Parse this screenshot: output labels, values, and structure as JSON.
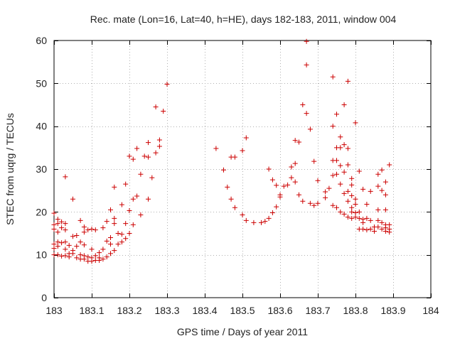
{
  "chart_data": {
    "type": "scatter",
    "title": "Rec. mate (Lon=16, Lat=40, h=HE), days 182-183, 2011, window 004",
    "xlabel": "GPS time / Days of year 2011",
    "ylabel": "STEC from uqrg / TECUs",
    "xlim": [
      183,
      184
    ],
    "ylim": [
      0,
      60
    ],
    "xticks": [
      183,
      183.1,
      183.2,
      183.3,
      183.4,
      183.5,
      183.6,
      183.7,
      183.8,
      183.9,
      184
    ],
    "xtick_labels": [
      "183",
      "183.1",
      "183.2",
      "183.3",
      "183.4",
      "183.5",
      "183.6",
      "183.7",
      "183.8",
      "183.9",
      "184"
    ],
    "yticks": [
      0,
      10,
      20,
      30,
      40,
      50,
      60
    ],
    "ytick_labels": [
      "0",
      "10",
      "20",
      "30",
      "40",
      "50",
      "60"
    ],
    "grid": true,
    "marker": "+",
    "color": "#cc0000",
    "series": [
      {
        "name": "STEC",
        "points": [
          [
            183.0,
            19.7
          ],
          [
            183.0,
            17.0
          ],
          [
            183.0,
            16.0
          ],
          [
            183.0,
            12.5
          ],
          [
            183.0,
            11.5
          ],
          [
            183.0,
            10.0
          ],
          [
            183.01,
            18.3
          ],
          [
            183.01,
            17.3
          ],
          [
            183.01,
            15.3
          ],
          [
            183.01,
            13.0
          ],
          [
            183.01,
            12.0
          ],
          [
            183.01,
            10.0
          ],
          [
            183.02,
            17.7
          ],
          [
            183.02,
            16.3
          ],
          [
            183.02,
            12.8
          ],
          [
            183.02,
            9.7
          ],
          [
            183.03,
            28.2
          ],
          [
            183.03,
            17.3
          ],
          [
            183.03,
            15.8
          ],
          [
            183.03,
            13.0
          ],
          [
            183.03,
            11.3
          ],
          [
            183.03,
            9.8
          ],
          [
            183.04,
            12.2
          ],
          [
            183.04,
            10.3
          ],
          [
            183.04,
            9.5
          ],
          [
            183.05,
            23.0
          ],
          [
            183.05,
            14.3
          ],
          [
            183.05,
            11.0
          ],
          [
            183.05,
            10.3
          ],
          [
            183.06,
            14.5
          ],
          [
            183.06,
            12.0
          ],
          [
            183.06,
            9.3
          ],
          [
            183.07,
            18.0
          ],
          [
            183.07,
            13.0
          ],
          [
            183.07,
            10.0
          ],
          [
            183.07,
            9.0
          ],
          [
            183.08,
            16.5
          ],
          [
            183.08,
            15.3
          ],
          [
            183.08,
            12.3
          ],
          [
            183.08,
            9.8
          ],
          [
            183.08,
            9.0
          ],
          [
            183.09,
            15.8
          ],
          [
            183.09,
            9.5
          ],
          [
            183.09,
            8.5
          ],
          [
            183.1,
            16.0
          ],
          [
            183.1,
            11.3
          ],
          [
            183.1,
            9.3
          ],
          [
            183.1,
            8.5
          ],
          [
            183.11,
            15.8
          ],
          [
            183.11,
            9.8
          ],
          [
            183.11,
            8.7
          ],
          [
            183.12,
            10.5
          ],
          [
            183.12,
            9.3
          ],
          [
            183.12,
            8.7
          ],
          [
            183.13,
            16.3
          ],
          [
            183.13,
            11.3
          ],
          [
            183.13,
            9.0
          ],
          [
            183.14,
            17.8
          ],
          [
            183.14,
            13.2
          ],
          [
            183.14,
            9.5
          ],
          [
            183.15,
            20.5
          ],
          [
            183.15,
            14.0
          ],
          [
            183.15,
            12.5
          ],
          [
            183.15,
            10.3
          ],
          [
            183.16,
            25.8
          ],
          [
            183.16,
            18.5
          ],
          [
            183.16,
            17.3
          ],
          [
            183.16,
            11.0
          ],
          [
            183.17,
            15.0
          ],
          [
            183.17,
            12.5
          ],
          [
            183.18,
            21.7
          ],
          [
            183.18,
            14.8
          ],
          [
            183.18,
            13.0
          ],
          [
            183.19,
            26.5
          ],
          [
            183.19,
            17.3
          ],
          [
            183.19,
            13.8
          ],
          [
            183.2,
            33.0
          ],
          [
            183.2,
            20.3
          ],
          [
            183.2,
            15.0
          ],
          [
            183.21,
            32.3
          ],
          [
            183.21,
            23.0
          ],
          [
            183.21,
            17.0
          ],
          [
            183.22,
            34.8
          ],
          [
            183.22,
            23.7
          ],
          [
            183.23,
            28.8
          ],
          [
            183.23,
            19.3
          ],
          [
            183.24,
            33.0
          ],
          [
            183.25,
            36.2
          ],
          [
            183.25,
            32.8
          ],
          [
            183.25,
            23.0
          ],
          [
            183.26,
            28.0
          ],
          [
            183.27,
            44.5
          ],
          [
            183.27,
            33.8
          ],
          [
            183.28,
            36.8
          ],
          [
            183.28,
            35.3
          ],
          [
            183.29,
            43.5
          ],
          [
            183.3,
            49.8
          ],
          [
            183.43,
            34.8
          ],
          [
            183.45,
            29.8
          ],
          [
            183.46,
            25.8
          ],
          [
            183.47,
            32.8
          ],
          [
            183.47,
            23.0
          ],
          [
            183.48,
            32.8
          ],
          [
            183.48,
            21.0
          ],
          [
            183.5,
            34.3
          ],
          [
            183.5,
            19.3
          ],
          [
            183.51,
            37.3
          ],
          [
            183.51,
            18.0
          ],
          [
            183.53,
            17.5
          ],
          [
            183.55,
            17.5
          ],
          [
            183.56,
            17.8
          ],
          [
            183.57,
            30.0
          ],
          [
            183.57,
            18.5
          ],
          [
            183.58,
            27.5
          ],
          [
            183.58,
            19.8
          ],
          [
            183.59,
            26.2
          ],
          [
            183.59,
            21.2
          ],
          [
            183.6,
            24.0
          ],
          [
            183.6,
            23.5
          ],
          [
            183.61,
            26.0
          ],
          [
            183.62,
            26.3
          ],
          [
            183.63,
            30.5
          ],
          [
            183.63,
            28.0
          ],
          [
            183.64,
            36.7
          ],
          [
            183.64,
            31.3
          ],
          [
            183.64,
            27.0
          ],
          [
            183.65,
            36.3
          ],
          [
            183.65,
            24.0
          ],
          [
            183.66,
            45.0
          ],
          [
            183.66,
            22.5
          ],
          [
            183.67,
            59.8
          ],
          [
            183.67,
            54.3
          ],
          [
            183.67,
            43.0
          ],
          [
            183.68,
            39.3
          ],
          [
            183.68,
            22.0
          ],
          [
            183.69,
            31.8
          ],
          [
            183.69,
            21.5
          ],
          [
            183.7,
            27.3
          ],
          [
            183.7,
            22.0
          ],
          [
            183.72,
            24.7
          ],
          [
            183.72,
            23.3
          ],
          [
            183.73,
            25.5
          ],
          [
            183.74,
            51.5
          ],
          [
            183.74,
            40.0
          ],
          [
            183.74,
            32.0
          ],
          [
            183.74,
            28.5
          ],
          [
            183.74,
            21.5
          ],
          [
            183.75,
            42.8
          ],
          [
            183.75,
            35.0
          ],
          [
            183.75,
            32.0
          ],
          [
            183.75,
            28.8
          ],
          [
            183.75,
            21.0
          ],
          [
            183.76,
            37.5
          ],
          [
            183.76,
            35.0
          ],
          [
            183.76,
            30.8
          ],
          [
            183.76,
            26.5
          ],
          [
            183.76,
            20.0
          ],
          [
            183.77,
            45.0
          ],
          [
            183.77,
            35.7
          ],
          [
            183.77,
            29.3
          ],
          [
            183.77,
            24.3
          ],
          [
            183.77,
            19.5
          ],
          [
            183.78,
            50.5
          ],
          [
            183.78,
            34.8
          ],
          [
            183.78,
            31.0
          ],
          [
            183.78,
            24.8
          ],
          [
            183.78,
            22.5
          ],
          [
            183.78,
            18.8
          ],
          [
            183.79,
            27.8
          ],
          [
            183.79,
            26.3
          ],
          [
            183.79,
            23.8
          ],
          [
            183.79,
            21.0
          ],
          [
            183.79,
            20.0
          ],
          [
            183.79,
            18.5
          ],
          [
            183.8,
            40.8
          ],
          [
            183.8,
            23.0
          ],
          [
            183.8,
            21.8
          ],
          [
            183.8,
            19.8
          ],
          [
            183.8,
            18.8
          ],
          [
            183.81,
            29.5
          ],
          [
            183.81,
            20.0
          ],
          [
            183.81,
            18.5
          ],
          [
            183.81,
            16.0
          ],
          [
            183.82,
            25.3
          ],
          [
            183.82,
            18.3
          ],
          [
            183.82,
            17.5
          ],
          [
            183.82,
            16.0
          ],
          [
            183.83,
            21.8
          ],
          [
            183.83,
            18.5
          ],
          [
            183.83,
            15.8
          ],
          [
            183.84,
            24.8
          ],
          [
            183.84,
            18.0
          ],
          [
            183.84,
            16.0
          ],
          [
            183.85,
            16.5
          ],
          [
            183.85,
            15.5
          ],
          [
            183.86,
            28.8
          ],
          [
            183.86,
            26.0
          ],
          [
            183.86,
            20.5
          ],
          [
            183.86,
            18.0
          ],
          [
            183.86,
            16.5
          ],
          [
            183.87,
            29.8
          ],
          [
            183.87,
            25.0
          ],
          [
            183.87,
            17.5
          ],
          [
            183.87,
            16.0
          ],
          [
            183.88,
            27.0
          ],
          [
            183.88,
            24.0
          ],
          [
            183.88,
            20.5
          ],
          [
            183.88,
            17.0
          ],
          [
            183.88,
            16.3
          ],
          [
            183.88,
            15.5
          ],
          [
            183.89,
            31.0
          ],
          [
            183.89,
            17.0
          ],
          [
            183.89,
            16.0
          ],
          [
            183.89,
            15.3
          ]
        ]
      }
    ]
  }
}
